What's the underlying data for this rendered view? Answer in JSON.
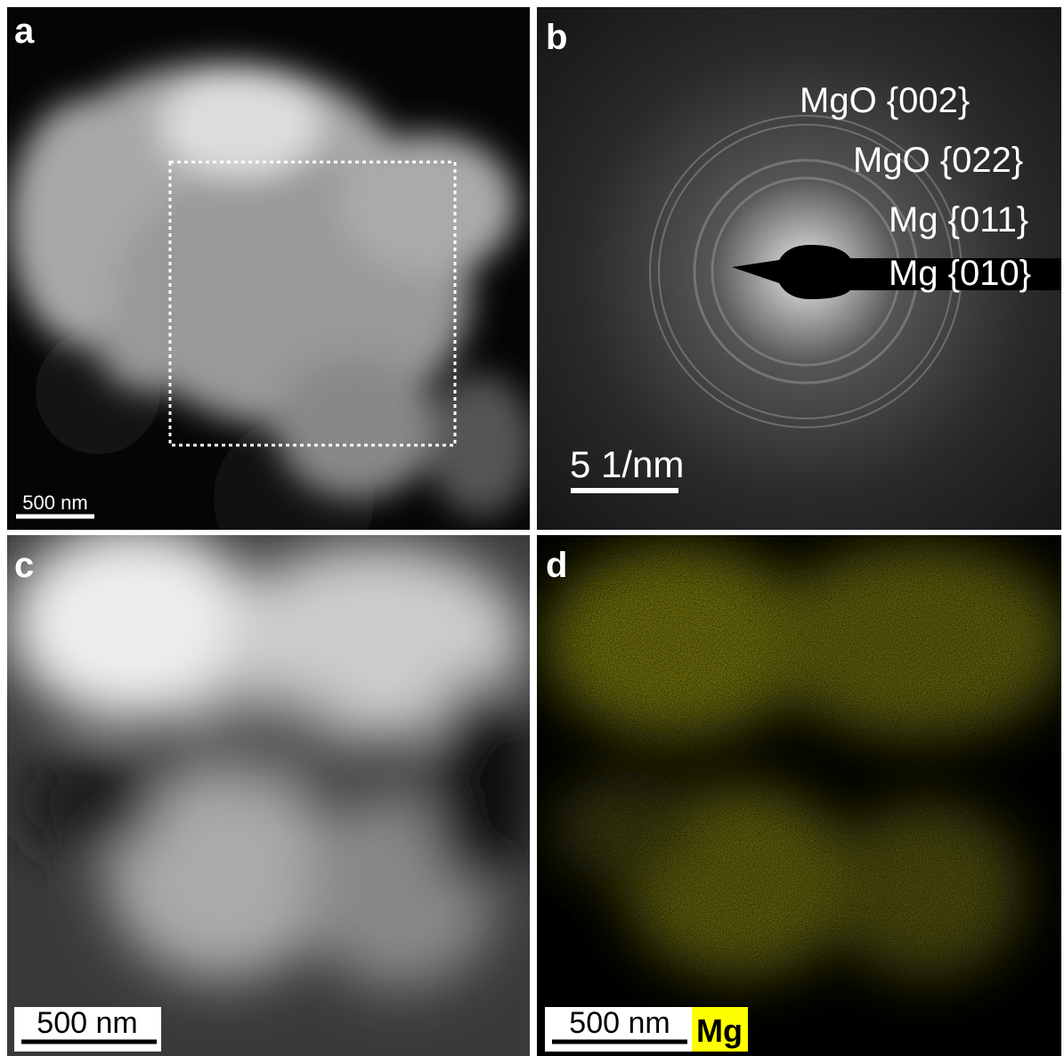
{
  "panels": [
    {
      "label": "a",
      "scale_bar": "500 nm"
    },
    {
      "label": "b",
      "scale_bar": "5 1/nm",
      "rings": [
        "MgO {002}",
        "MgO {022}",
        "Mg {011}",
        "Mg {010}"
      ]
    },
    {
      "label": "c",
      "scale_bar": "500 nm"
    },
    {
      "label": "d",
      "scale_bar": "500 nm",
      "element": "Mg"
    }
  ]
}
